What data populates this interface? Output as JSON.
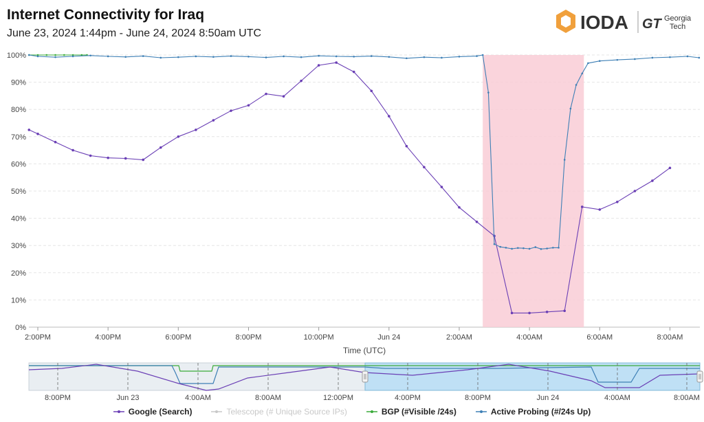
{
  "header": {
    "title": "Internet Connectivity for  Iraq",
    "subtitle": "June 23, 2024 1:44pm - June 24, 2024 8:50am UTC"
  },
  "logo": {
    "ioda_text": "IODA",
    "gt_mark": "GT",
    "gt_line1": "Georgia",
    "gt_line2": "Tech",
    "ioda_color": "#f0a03c"
  },
  "chart_data": {
    "type": "line",
    "xlabel": "Time (UTC)",
    "ylabel": "",
    "ylim": [
      0,
      100
    ],
    "yticks": [
      "0%",
      "10%",
      "20%",
      "30%",
      "40%",
      "50%",
      "60%",
      "70%",
      "80%",
      "90%",
      "100%"
    ],
    "xticks": [
      "2:00PM",
      "4:00PM",
      "6:00PM",
      "8:00PM",
      "10:00PM",
      "Jun 24",
      "2:00AM",
      "4:00AM",
      "6:00AM",
      "8:00AM"
    ],
    "outage_window": {
      "start_hour": 2.67,
      "end_hour": 5.55,
      "color": "#f9cdd6"
    },
    "series": [
      {
        "name": "Google (Search)",
        "color": "#6a3fb5",
        "x": [
          -10.25,
          -10,
          -9.5,
          -9,
          -8.5,
          -8,
          -7.5,
          -7,
          -6.5,
          -6,
          -5.5,
          -5,
          -4.5,
          -4,
          -3.5,
          -3,
          -2.5,
          -2,
          -1.5,
          -1,
          -0.5,
          0,
          0.5,
          1,
          1.5,
          2,
          2.5,
          3,
          3.5,
          4,
          4.5,
          5,
          5.5,
          6,
          6.5,
          7,
          7.5,
          8
        ],
        "values": [
          72.5,
          71,
          68,
          65,
          63,
          62.2,
          62,
          61.5,
          66,
          70,
          72.5,
          76,
          79.5,
          81.5,
          85.7,
          84.8,
          90.5,
          96.2,
          97.2,
          93.8,
          86.8,
          77.5,
          66.5,
          58.8,
          51.5,
          44,
          38.7,
          33.5,
          5.2,
          5.2,
          5.6,
          6,
          44.2,
          43.2,
          46,
          50,
          53.8,
          58.5
        ]
      },
      {
        "name": "Telescope (# Unique Source IPs)",
        "color": "#c8c8c8",
        "visible": false,
        "values": []
      },
      {
        "name": "BGP (#Visible /24s)",
        "color": "#3aaa3a",
        "x": [
          -10.25,
          -10,
          -9.75,
          -9.5,
          -9.25,
          -9,
          -8.75,
          -8.6
        ],
        "values": [
          100,
          100,
          100,
          100,
          100,
          100,
          100,
          100
        ]
      },
      {
        "name": "Active Probing (#/24s Up)",
        "color": "#3d7fb5",
        "x": [
          -10.25,
          -10,
          -9.5,
          -9,
          -8.5,
          -8,
          -7.5,
          -7,
          -6.5,
          -6,
          -5.5,
          -5,
          -4.5,
          -4,
          -3.5,
          -3,
          -2.5,
          -2,
          -1.5,
          -1,
          -0.5,
          0,
          0.5,
          1,
          1.5,
          2,
          2.5,
          2.67,
          2.83,
          3,
          3.17,
          3.33,
          3.5,
          3.67,
          3.83,
          4,
          4.17,
          4.33,
          4.5,
          4.67,
          4.83,
          5,
          5.17,
          5.33,
          5.5,
          5.67,
          6,
          6.5,
          7,
          7.5,
          8,
          8.5,
          8.83
        ],
        "values": [
          100,
          99.5,
          99.2,
          99.5,
          99.8,
          99.5,
          99.3,
          99.6,
          99,
          99.2,
          99.5,
          99.3,
          99.6,
          99.4,
          99.1,
          99.5,
          99.2,
          99.7,
          99.5,
          99.4,
          99.6,
          99.3,
          98.8,
          99.2,
          99,
          99.4,
          99.6,
          100,
          86.2,
          30.5,
          29.5,
          29.2,
          28.8,
          29.1,
          29,
          28.8,
          29.4,
          28.7,
          28.9,
          29.2,
          29.2,
          61.5,
          80.3,
          89,
          93.2,
          97,
          97.8,
          98.2,
          98.5,
          99,
          99.2,
          99.5,
          99
        ]
      }
    ]
  },
  "navigator": {
    "xticks": [
      "8:00PM",
      "Jun 23",
      "4:00AM",
      "8:00AM",
      "12:00PM",
      "4:00PM",
      "8:00PM",
      "Jun 24",
      "4:00AM",
      "8:00AM"
    ]
  }
}
